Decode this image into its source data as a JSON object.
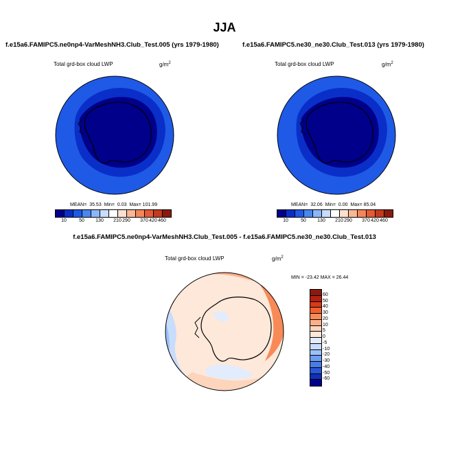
{
  "page_title": "JJA",
  "panel1": {
    "title": "f.e15a6.FAMIPC5.ne0np4-VarMeshNH3.Club_Test.005 (yrs 1979-1980)",
    "variable": "Total grd-box cloud LWP",
    "units": "g/m",
    "units_sup": "2",
    "mean_label": "MEAN=",
    "mean": "35.53",
    "min_label": "Min=",
    "min": "0.03",
    "max_label": "Max=",
    "max": "101.99"
  },
  "panel2": {
    "title": "f.e15a6.FAMIPC5.ne30_ne30.Club_Test.013 (yrs 1979-1980)",
    "variable": "Total grd-box cloud LWP",
    "units": "g/m",
    "units_sup": "2",
    "mean_label": "MEAN=",
    "mean": "32.06",
    "min_label": "Min=",
    "min": "0.00",
    "max_label": "Max=",
    "max": "85.04"
  },
  "panel3": {
    "title": "f.e15a6.FAMIPC5.ne0np4-VarMeshNH3.Club_Test.005 - f.e15a6.FAMIPC5.ne30_ne30.Club_Test.013",
    "variable": "Total grd-box cloud LWP",
    "units": "g/m",
    "units_sup": "2",
    "minmax": "MIN = -23.42  MAX =  26.44"
  },
  "colorbar_abs": {
    "labels": [
      "10",
      "50",
      "130",
      "210",
      "290",
      "370",
      "420",
      "460"
    ],
    "colors": [
      "#00008b",
      "#0a2fc8",
      "#1f5ae6",
      "#4a86f0",
      "#8cb6f8",
      "#c8dcfc",
      "#ffffff",
      "#fde0cf",
      "#fbb696",
      "#f4865a",
      "#e45a34",
      "#c43a1e",
      "#8b1a0e"
    ]
  },
  "colorbar_diff": {
    "labels": [
      "60",
      "50",
      "40",
      "30",
      "20",
      "10",
      "5",
      "0",
      "-5",
      "-10",
      "-20",
      "-30",
      "-40",
      "-50",
      "-60"
    ],
    "colors": [
      "#8b1a0e",
      "#b3200f",
      "#d83a1a",
      "#f0602e",
      "#f88a58",
      "#fbb08a",
      "#fdd4bc",
      "#fde8da",
      "#e2ecfc",
      "#c8dcfc",
      "#9cc0f8",
      "#6e9cf0",
      "#4a7ce6",
      "#2a56d8",
      "#1030b8",
      "#00008b"
    ]
  },
  "chart_data": [
    {
      "type": "heatmap",
      "title": "f.e15a6.FAMIPC5.ne0np4-VarMeshNH3.Club_Test.005 (yrs 1979-1980)",
      "variable": "Total grd-box cloud LWP",
      "units": "g/m2",
      "season": "JJA",
      "projection": "south polar stereographic",
      "stats": {
        "mean": 35.53,
        "min": 0.03,
        "max": 101.99
      },
      "levels": [
        10,
        50,
        130,
        210,
        290,
        370,
        420,
        460
      ]
    },
    {
      "type": "heatmap",
      "title": "f.e15a6.FAMIPC5.ne30_ne30.Club_Test.013 (yrs 1979-1980)",
      "variable": "Total grd-box cloud LWP",
      "units": "g/m2",
      "season": "JJA",
      "projection": "south polar stereographic",
      "stats": {
        "mean": 32.06,
        "min": 0.0,
        "max": 85.04
      },
      "levels": [
        10,
        50,
        130,
        210,
        290,
        370,
        420,
        460
      ]
    },
    {
      "type": "heatmap",
      "title": "difference",
      "variable": "Total grd-box cloud LWP",
      "units": "g/m2",
      "season": "JJA",
      "projection": "south polar stereographic",
      "stats": {
        "min": -23.42,
        "max": 26.44
      },
      "levels": [
        -60,
        -50,
        -40,
        -30,
        -20,
        -10,
        -5,
        0,
        5,
        10,
        20,
        30,
        40,
        50,
        60
      ]
    }
  ]
}
